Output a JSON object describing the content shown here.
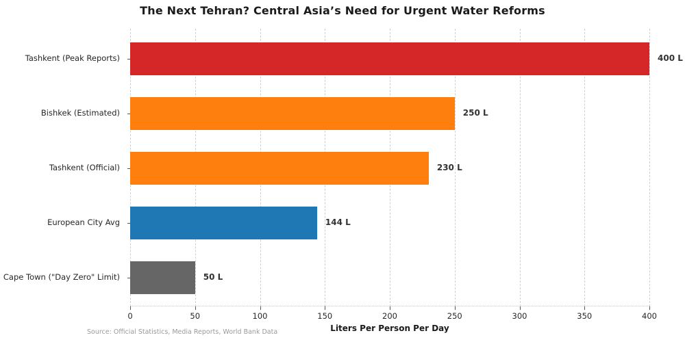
{
  "title": "The Next Tehran? Central Asia’s Need for Urgent Water Reforms",
  "source_note": "Source: Official Statistics, Media Reports, World Bank Data",
  "chart_data": {
    "type": "bar",
    "orientation": "horizontal",
    "title": "The Next Tehran? Central Asia’s Need for Urgent Water Reforms",
    "categories": [
      "Tashkent (Peak Reports)",
      "Bishkek (Estimated)",
      "Tashkent (Official)",
      "European City Avg",
      "Cape Town (\"Day Zero\" Limit)"
    ],
    "values": [
      400,
      250,
      230,
      144,
      50
    ],
    "value_labels": [
      "400 L",
      "250 L",
      "230 L",
      "144 L",
      "50 L"
    ],
    "bar_colors": [
      "#d62728",
      "#ff7f0e",
      "#ff7f0e",
      "#1f77b4",
      "#666666"
    ],
    "xlabel": "Liters Per Person Per Day",
    "ylabel": "",
    "xlim": [
      0,
      400
    ],
    "x_ticks": [
      0,
      50,
      100,
      150,
      200,
      250,
      300,
      350,
      400
    ],
    "grid": "vertical-dashed",
    "legend": "none"
  }
}
